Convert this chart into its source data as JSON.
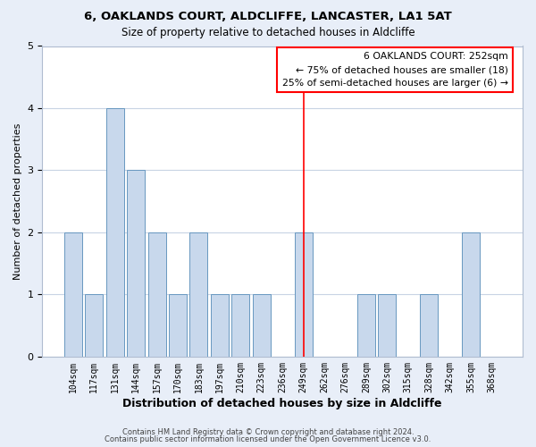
{
  "title1": "6, OAKLANDS COURT, ALDCLIFFE, LANCASTER, LA1 5AT",
  "title2": "Size of property relative to detached houses in Aldcliffe",
  "xlabel": "Distribution of detached houses by size in Aldcliffe",
  "ylabel": "Number of detached properties",
  "bar_labels": [
    "104sqm",
    "117sqm",
    "131sqm",
    "144sqm",
    "157sqm",
    "170sqm",
    "183sqm",
    "197sqm",
    "210sqm",
    "223sqm",
    "236sqm",
    "249sqm",
    "262sqm",
    "276sqm",
    "289sqm",
    "302sqm",
    "315sqm",
    "328sqm",
    "342sqm",
    "355sqm",
    "368sqm"
  ],
  "bar_values": [
    2,
    1,
    4,
    3,
    2,
    1,
    2,
    1,
    1,
    1,
    0,
    2,
    0,
    0,
    1,
    1,
    0,
    1,
    0,
    2,
    0
  ],
  "bar_color": "#c8d8ec",
  "bar_edgecolor": "#6898c0",
  "bar_linewidth": 0.7,
  "grid_color": "#c8d4e4",
  "background_color": "#e8eef8",
  "plot_bg_color": "#ffffff",
  "ylim": [
    0,
    5
  ],
  "yticks": [
    0,
    1,
    2,
    3,
    4,
    5
  ],
  "vline_x_index": 11,
  "vline_color": "red",
  "annotation_title": "6 OAKLANDS COURT: 252sqm",
  "annotation_line1": "← 75% of detached houses are smaller (18)",
  "annotation_line2": "25% of semi-detached houses are larger (6) →",
  "annotation_box_color": "red",
  "footer1": "Contains HM Land Registry data © Crown copyright and database right 2024.",
  "footer2": "Contains public sector information licensed under the Open Government Licence v3.0."
}
